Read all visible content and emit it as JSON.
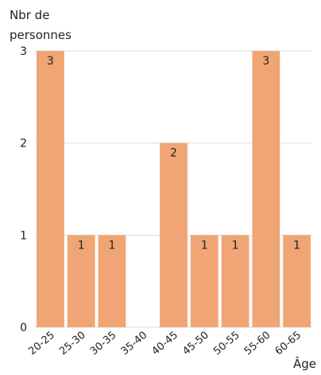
{
  "chart_data": {
    "type": "bar",
    "ylabel_lines": [
      "Nbr de",
      "personnes"
    ],
    "xlabel": "Âge",
    "categories": [
      "20-25",
      "25-30",
      "30-35",
      "35-40",
      "40-45",
      "45-50",
      "50-55",
      "55-60",
      "60-65"
    ],
    "values": [
      3,
      1,
      1,
      0,
      2,
      1,
      1,
      3,
      1
    ],
    "data_labels": [
      "3",
      "1",
      "1",
      "",
      "2",
      "1",
      "1",
      "3",
      "1"
    ],
    "yticks": [
      0,
      1,
      2,
      3
    ],
    "ylim": [
      0,
      3
    ],
    "grid": true,
    "legend": "none"
  },
  "colors": {
    "bar": "#EFA574",
    "grid": "#dedede",
    "text": "#222222"
  }
}
